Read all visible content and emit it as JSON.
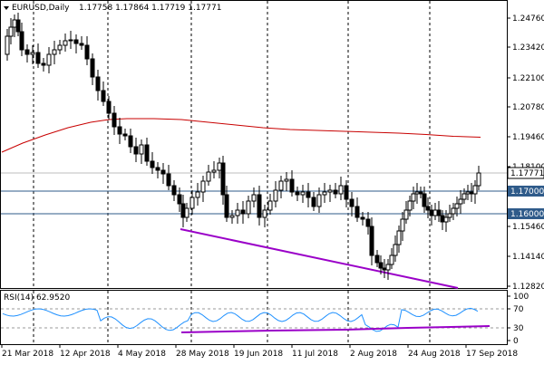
{
  "header": {
    "symbol_timeframe": "EURUSD,Daily",
    "ohlc": "1.17758 1.17864 1.17719 1.17771",
    "icon": "triangle-down-icon"
  },
  "price_axis": {
    "labels": [
      "1.24760",
      "1.23420",
      "1.22100",
      "1.20780",
      "1.19460",
      "1.18100",
      "1.15460",
      "1.14140",
      "1.12820"
    ]
  },
  "price_markers": {
    "current": "1.17771",
    "level_1": "1.17000",
    "level_2": "1.16000"
  },
  "rsi": {
    "label": "RSI(14) 62.9520",
    "levels": [
      "100",
      "70",
      "30",
      "0"
    ]
  },
  "time_axis": {
    "labels": [
      "21 Mar 2018",
      "12 Apr 2018",
      "4 May 2018",
      "28 May 2018",
      "19 Jun 2018",
      "11 Jul 2018",
      "2 Aug 2018",
      "24 Aug 2018",
      "17 Sep 2018"
    ]
  },
  "colors": {
    "ma_line": "#c80000",
    "trendline": "#9a00c8",
    "rsi_line": "#1e90ff",
    "price_box": "#ffffff",
    "level_line": "#2f5b8a",
    "grid": "#000000"
  },
  "chart_data": {
    "type": "candlestick",
    "symbol": "EURUSD",
    "timeframe": "Daily",
    "last_price": 1.17771,
    "horizontal_levels": [
      1.17,
      1.16
    ],
    "ylim": [
      1.124,
      1.253
    ],
    "rsi_value": 62.952,
    "rsi_levels": [
      70,
      30
    ]
  }
}
